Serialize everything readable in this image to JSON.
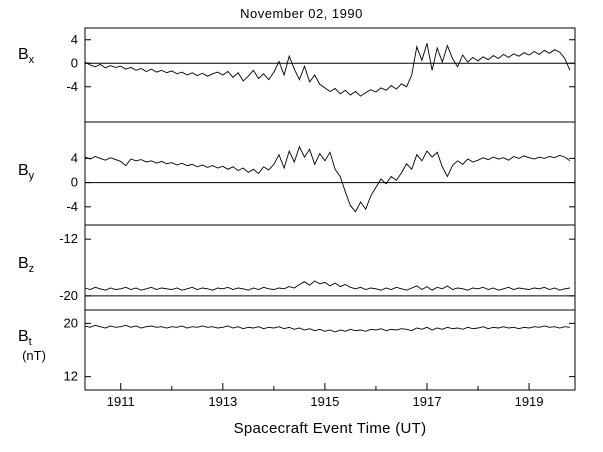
{
  "title": "November 02, 1990",
  "xlabel": "Spacecraft Event Time (UT)",
  "chart_data": {
    "type": "line",
    "title": "November 02, 1990",
    "xlabel": "Spacecraft Event Time (UT)",
    "x_range": [
      1910.3,
      1919.9
    ],
    "x_start": 1910.3,
    "x_step": 0.1,
    "x_major_ticks": [
      1911,
      1913,
      1915,
      1917,
      1919
    ],
    "x_minor_ticks": [
      1912,
      1914,
      1916,
      1918
    ],
    "line_color": "#000000",
    "axis_color": "#000000",
    "background": "#ffffff",
    "panels": [
      {
        "name": "Bx",
        "label_main": "B",
        "label_sub": "x",
        "y_top": 6,
        "y_bottom": -10,
        "ticks": [
          4,
          0,
          -4
        ],
        "ref_lines": [
          0
        ],
        "values": [
          0.2,
          -0.3,
          -0.6,
          -0.2,
          -0.8,
          -0.4,
          -0.7,
          -0.5,
          -1.0,
          -0.7,
          -1.2,
          -0.9,
          -1.4,
          -1.0,
          -1.5,
          -1.2,
          -1.6,
          -1.3,
          -1.8,
          -1.5,
          -2.0,
          -1.6,
          -2.1,
          -1.7,
          -2.2,
          -1.8,
          -1.5,
          -2.0,
          -1.4,
          -2.4,
          -1.6,
          -3.0,
          -2.2,
          -1.2,
          -2.6,
          -1.8,
          -2.8,
          -1.5,
          0.3,
          -2.0,
          1.2,
          -1.0,
          -2.8,
          -0.5,
          -3.2,
          -2.0,
          -3.6,
          -4.2,
          -4.8,
          -4.3,
          -5.2,
          -4.6,
          -5.4,
          -4.8,
          -5.6,
          -5.0,
          -4.5,
          -4.9,
          -4.2,
          -4.6,
          -3.8,
          -4.4,
          -3.5,
          -4.0,
          -2.0,
          2.8,
          0.5,
          3.4,
          -1.2,
          2.6,
          0.2,
          3.0,
          0.8,
          -0.6,
          1.4,
          0.2,
          1.0,
          0.4,
          1.1,
          0.6,
          1.3,
          0.8,
          1.5,
          1.0,
          1.6,
          1.2,
          1.8,
          1.4,
          2.0,
          1.5,
          2.2,
          1.7,
          2.3,
          1.9,
          0.8,
          -1.2
        ]
      },
      {
        "name": "By",
        "label_main": "B",
        "label_sub": "y",
        "y_top": 10,
        "y_bottom": -7,
        "ticks": [
          4,
          0,
          -4
        ],
        "ref_lines": [
          0
        ],
        "values": [
          4.2,
          3.9,
          4.3,
          4.0,
          3.7,
          4.1,
          3.8,
          3.5,
          2.8,
          3.9,
          3.6,
          3.8,
          3.4,
          3.6,
          3.2,
          3.5,
          3.1,
          3.3,
          2.9,
          3.2,
          2.8,
          3.0,
          2.6,
          2.9,
          2.5,
          2.8,
          2.4,
          2.7,
          2.2,
          2.6,
          2.0,
          2.4,
          1.7,
          2.2,
          1.5,
          2.6,
          2.1,
          3.0,
          4.6,
          2.4,
          5.2,
          3.4,
          5.9,
          4.2,
          5.5,
          3.0,
          4.8,
          3.6,
          5.0,
          2.2,
          1.0,
          -1.5,
          -3.8,
          -4.8,
          -3.2,
          -4.4,
          -2.2,
          -0.8,
          0.6,
          -0.2,
          1.0,
          0.4,
          1.6,
          3.1,
          2.2,
          4.6,
          3.6,
          5.2,
          4.2,
          5.0,
          2.6,
          1.0,
          2.8,
          3.6,
          3.0,
          3.9,
          3.4,
          3.7,
          4.1,
          3.8,
          4.2,
          3.9,
          4.1,
          3.7,
          4.3,
          4.0,
          4.4,
          4.1,
          3.9,
          4.2,
          4.0,
          4.3,
          4.1,
          4.5,
          4.2,
          3.6
        ]
      },
      {
        "name": "Bz",
        "label_main": "B",
        "label_sub": "z",
        "y_top": -10,
        "y_bottom": -22,
        "ticks": [
          -12,
          -20
        ],
        "ref_lines": [
          -20
        ],
        "values": [
          -18.9,
          -19.1,
          -18.8,
          -19.0,
          -19.2,
          -18.9,
          -19.1,
          -19.0,
          -18.8,
          -19.1,
          -18.9,
          -19.2,
          -19.0,
          -18.8,
          -19.1,
          -18.9,
          -19.0,
          -19.1,
          -18.9,
          -19.2,
          -19.0,
          -18.8,
          -19.1,
          -18.9,
          -19.0,
          -19.2,
          -18.9,
          -19.0,
          -18.8,
          -19.1,
          -18.9,
          -19.0,
          -19.2,
          -18.9,
          -19.1,
          -18.8,
          -19.0,
          -19.1,
          -18.9,
          -19.0,
          -18.7,
          -18.9,
          -18.4,
          -18.0,
          -18.5,
          -17.9,
          -18.3,
          -18.1,
          -18.6,
          -18.2,
          -18.7,
          -18.4,
          -18.8,
          -19.0,
          -18.8,
          -19.1,
          -18.9,
          -19.0,
          -19.2,
          -18.9,
          -19.1,
          -18.8,
          -19.0,
          -19.2,
          -18.9,
          -18.6,
          -19.1,
          -18.7,
          -19.2,
          -18.8,
          -19.0,
          -18.6,
          -19.1,
          -18.9,
          -19.0,
          -19.2,
          -18.9,
          -19.0,
          -18.8,
          -19.1,
          -18.9,
          -19.2,
          -19.0,
          -18.8,
          -19.1,
          -18.9,
          -19.0,
          -19.1,
          -18.9,
          -19.0,
          -18.8,
          -19.1,
          -18.9,
          -19.2,
          -19.0,
          -18.9
        ]
      },
      {
        "name": "Bt",
        "label_main": "B",
        "label_sub": "t",
        "units": "(nT)",
        "y_top": 22,
        "y_bottom": 10,
        "ticks": [
          20,
          12
        ],
        "ref_lines": [],
        "values": [
          19.6,
          19.4,
          19.7,
          19.5,
          19.3,
          19.6,
          19.4,
          19.5,
          19.7,
          19.4,
          19.6,
          19.3,
          19.5,
          19.6,
          19.4,
          19.5,
          19.3,
          19.5,
          19.4,
          19.6,
          19.3,
          19.5,
          19.4,
          19.6,
          19.4,
          19.5,
          19.3,
          19.4,
          19.6,
          19.3,
          19.5,
          19.2,
          19.4,
          19.3,
          19.5,
          19.2,
          19.4,
          19.3,
          19.5,
          19.2,
          19.4,
          19.1,
          19.3,
          19.0,
          19.2,
          18.9,
          19.1,
          18.8,
          19.0,
          18.7,
          19.0,
          18.8,
          19.1,
          18.9,
          19.0,
          18.8,
          19.1,
          19.0,
          19.2,
          18.9,
          19.1,
          19.0,
          19.2,
          19.1,
          18.9,
          19.3,
          19.1,
          19.4,
          19.0,
          19.3,
          19.1,
          19.4,
          19.2,
          19.3,
          19.1,
          19.4,
          19.2,
          19.3,
          19.5,
          19.2,
          19.4,
          19.3,
          19.5,
          19.3,
          19.4,
          19.2,
          19.4,
          19.3,
          19.5,
          19.4,
          19.6,
          19.4,
          19.5,
          19.3,
          19.5,
          19.4
        ]
      }
    ]
  }
}
